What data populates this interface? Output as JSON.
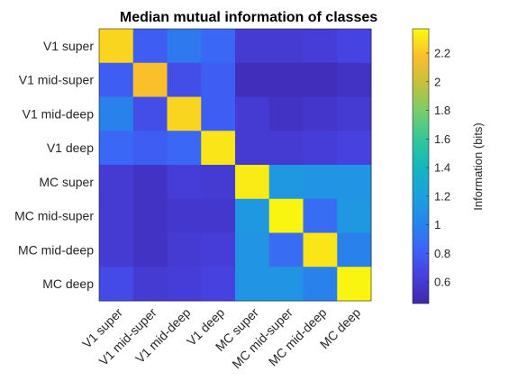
{
  "chart_data": {
    "type": "heatmap",
    "title": "Median mutual information of classes",
    "row_labels": [
      "V1 super",
      "V1 mid-super",
      "V1 mid-deep",
      "V1 deep",
      "MC super",
      "MC mid-super",
      "MC mid-deep",
      "MC deep"
    ],
    "col_labels": [
      "V1 super",
      "V1 mid-super",
      "V1 mid-deep",
      "V1 deep",
      "MC super",
      "MC mid-super",
      "MC mid-deep",
      "MC deep"
    ],
    "values": [
      [
        2.25,
        0.8,
        0.95,
        0.85,
        0.6,
        0.6,
        0.62,
        0.67
      ],
      [
        0.8,
        2.18,
        0.72,
        0.8,
        0.52,
        0.52,
        0.52,
        0.55
      ],
      [
        1.0,
        0.72,
        2.25,
        0.8,
        0.6,
        0.55,
        0.57,
        0.6
      ],
      [
        0.85,
        0.8,
        0.85,
        2.3,
        0.6,
        0.6,
        0.62,
        0.65
      ],
      [
        0.6,
        0.55,
        0.62,
        0.6,
        2.32,
        1.15,
        1.12,
        1.12
      ],
      [
        0.6,
        0.55,
        0.58,
        0.58,
        1.15,
        2.35,
        0.88,
        1.15
      ],
      [
        0.6,
        0.55,
        0.6,
        0.62,
        1.12,
        0.88,
        2.3,
        1.0
      ],
      [
        0.7,
        0.6,
        0.62,
        0.65,
        1.12,
        1.12,
        1.0,
        2.35
      ]
    ],
    "colorbar": {
      "label": "Information (bits)",
      "range": [
        0.45,
        2.37
      ],
      "ticks": [
        0.6,
        0.8,
        1,
        1.2,
        1.4,
        1.6,
        1.8,
        2,
        2.2
      ],
      "tick_labels": [
        "0.6",
        "0.8",
        "1",
        "1.2",
        "1.4",
        "1.6",
        "1.8",
        "2",
        "2.2"
      ],
      "colormap": "parula"
    }
  }
}
